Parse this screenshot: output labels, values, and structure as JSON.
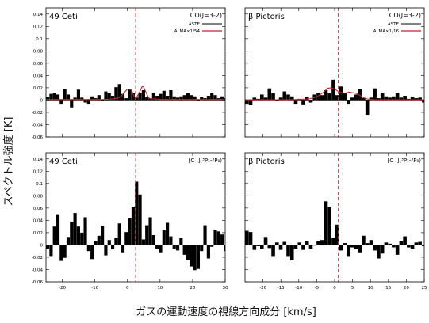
{
  "figure": {
    "ylabel": "スペクトル強度 [K]",
    "xlabel": "ガスの運動速度の視線方向成分 [km/s]"
  },
  "chart_data": [
    {
      "type": "bar",
      "object": "49 Ceti",
      "line": "CO(J=3-2)",
      "legend": [
        "ASTE",
        "ALMA×1/54"
      ],
      "xlim": [
        -25,
        30
      ],
      "ylim": [
        -0.06,
        0.15
      ],
      "xticks": [
        -20,
        -10,
        0,
        10,
        20,
        30
      ],
      "yticks": [
        -0.06,
        -0.04,
        -0.02,
        0,
        0.02,
        0.04,
        0.06,
        0.08,
        0.1,
        0.12,
        0.14
      ],
      "ytick_labels": [
        "-0.06",
        "-0.04",
        "-0.02",
        "0",
        "0.02",
        "0.04",
        "0.06",
        "0.08",
        "0.1",
        "0.12",
        "0.14"
      ],
      "vline": 2.5,
      "bin": 1.05,
      "x_start": -25,
      "series": [
        {
          "name": "ASTE",
          "values": [
            0.005,
            0.01,
            0.012,
            0.009,
            -0.006,
            0.018,
            0.009,
            -0.012,
            0.004,
            0.017,
            0.004,
            -0.004,
            -0.006,
            0.006,
            0.003,
            0.008,
            -0.002,
            0.014,
            0.011,
            0.007,
            0.021,
            0.026,
            0.01,
            0.003,
            0.018,
            0.011,
            0.004,
            0.012,
            0.016,
            0.005,
            0.003,
            0.012,
            0.007,
            0.01,
            0.015,
            0.007,
            0.016,
            0.006,
            0.004,
            0.006,
            0.008,
            0.011,
            0.008,
            0.006,
            -0.002,
            0.005,
            0.003,
            0.007,
            0.011,
            0.008,
            0.003,
            0.006,
            0.003,
            -0.002
          ]
        },
        {
          "name": "ALMA×1/54",
          "x": [
            -25,
            -19,
            -15,
            -10,
            -7,
            -5,
            -3,
            -2,
            -1,
            0,
            1,
            1.5,
            2,
            2.5,
            3,
            4,
            4.5,
            5,
            5.5,
            6,
            6.5,
            7,
            8,
            10,
            12,
            14,
            16,
            20,
            25,
            30
          ],
          "y": [
            0.001,
            0.001,
            0.001,
            0.001,
            0.001,
            0.0015,
            0.003,
            0.006,
            0.012,
            0.018,
            0.017,
            0.013,
            0.006,
            0.004,
            0.006,
            0.016,
            0.022,
            0.021,
            0.015,
            0.009,
            0.004,
            0.002,
            0.002,
            0.001,
            0.001,
            0.001,
            0.001,
            0.001,
            0.001,
            0.001
          ]
        }
      ]
    },
    {
      "type": "bar",
      "object": "β Pictoris",
      "line": "CO(J=3-2)",
      "legend": [
        "ASTE",
        "ALMA×1/16"
      ],
      "xlim": [
        -25,
        25
      ],
      "ylim": [
        -0.06,
        0.15
      ],
      "xticks": [
        -20,
        -15,
        -10,
        -5,
        0,
        5,
        10,
        15,
        20,
        25
      ],
      "yticks": [
        -0.06,
        -0.04,
        -0.02,
        0,
        0.02,
        0.04,
        0.06,
        0.08,
        0.1,
        0.12,
        0.14
      ],
      "vline": 1,
      "bin": 1.05,
      "x_start": -25,
      "series": [
        {
          "name": "ASTE",
          "values": [
            -0.006,
            -0.008,
            0.004,
            0.002,
            0.009,
            0.004,
            0.019,
            0.011,
            -0.002,
            0.004,
            0.014,
            0.009,
            0.006,
            -0.006,
            0.002,
            -0.007,
            0.005,
            -0.004,
            0.009,
            0.012,
            0.008,
            0.016,
            0.011,
            0.033,
            0.008,
            0.022,
            0.012,
            -0.006,
            0.004,
            0.009,
            0.018,
            0.003,
            -0.024,
            0.004,
            0.019,
            0.003,
            0.011,
            0.006,
            0.004,
            0.006,
            0.012,
            0.004,
            0.007,
            0.002,
            0.005,
            0.003,
            0.004,
            -0.004
          ]
        },
        {
          "name": "ALMA×1/16",
          "x": [
            -25,
            -15,
            -10,
            -7,
            -5,
            -4,
            -3,
            -2,
            -1,
            0,
            1,
            2,
            3,
            4,
            5,
            6,
            7,
            8,
            9,
            10,
            11,
            25
          ],
          "y": [
            0.0005,
            0.0005,
            0.001,
            0.002,
            0.005,
            0.009,
            0.013,
            0.019,
            0.02,
            0.018,
            0.014,
            0.012,
            0.011,
            0.013,
            0.012,
            0.011,
            0.008,
            0.004,
            0.002,
            0.001,
            0.0005,
            0.0005
          ]
        }
      ]
    },
    {
      "type": "bar",
      "object": "49 Ceti",
      "line": "[C I](³P₁-³P₀)",
      "xlim": [
        -25,
        30
      ],
      "ylim": [
        -0.06,
        0.15
      ],
      "xticks": [
        -20,
        -10,
        0,
        10,
        20,
        30
      ],
      "yticks": [
        -0.06,
        -0.04,
        -0.02,
        0,
        0.02,
        0.04,
        0.06,
        0.08,
        0.1,
        0.12,
        0.14
      ],
      "vline": 2.5,
      "bin": 1.05,
      "x_start": -25,
      "series": [
        {
          "name": "",
          "values": [
            -0.006,
            -0.018,
            0.03,
            0.05,
            -0.026,
            -0.021,
            0.013,
            0.038,
            0.052,
            0.03,
            0.02,
            0.045,
            -0.01,
            -0.023,
            0.006,
            0.015,
            0.031,
            -0.017,
            0.008,
            -0.007,
            0.012,
            0.035,
            -0.012,
            0.021,
            0.043,
            0.062,
            0.103,
            0.082,
            0.009,
            0.032,
            0.045,
            0.016,
            -0.006,
            -0.012,
            0.024,
            0.036,
            0.014,
            -0.006,
            -0.009,
            0.011,
            -0.016,
            -0.025,
            -0.035,
            -0.041,
            -0.039,
            -0.01,
            0.032,
            -0.022,
            -0.003,
            0.025,
            0.022,
            0.017,
            -0.01,
            0.006
          ]
        }
      ]
    },
    {
      "type": "bar",
      "object": "β Pictoris",
      "line": "[C I](³P₁-³P₀)",
      "xlim": [
        -25,
        25
      ],
      "ylim": [
        -0.06,
        0.15
      ],
      "xticks": [
        -20,
        -15,
        -10,
        -5,
        0,
        5,
        10,
        15,
        20,
        25
      ],
      "yticks": [
        -0.06,
        -0.04,
        -0.02,
        0,
        0.02,
        0.04,
        0.06,
        0.08,
        0.1,
        0.12,
        0.14
      ],
      "vline": 1,
      "bin": 1.05,
      "x_start": -25,
      "series": [
        {
          "name": "",
          "values": [
            0.023,
            0.021,
            -0.008,
            -0.002,
            -0.006,
            0.013,
            -0.005,
            -0.018,
            0.004,
            -0.008,
            0.005,
            -0.018,
            -0.025,
            -0.006,
            0.004,
            -0.008,
            0.007,
            -0.006,
            -0.001,
            0.006,
            0.008,
            0.071,
            0.062,
            0.012,
            0.033,
            -0.009,
            0.003,
            -0.018,
            -0.004,
            -0.007,
            -0.012,
            0.015,
            0.003,
            0.008,
            -0.009,
            -0.022,
            -0.014,
            0.004,
            0.002,
            -0.004,
            -0.016,
            0.006,
            0.014,
            -0.004,
            -0.006,
            0.004,
            0.005,
            -0.002
          ]
        }
      ]
    }
  ]
}
